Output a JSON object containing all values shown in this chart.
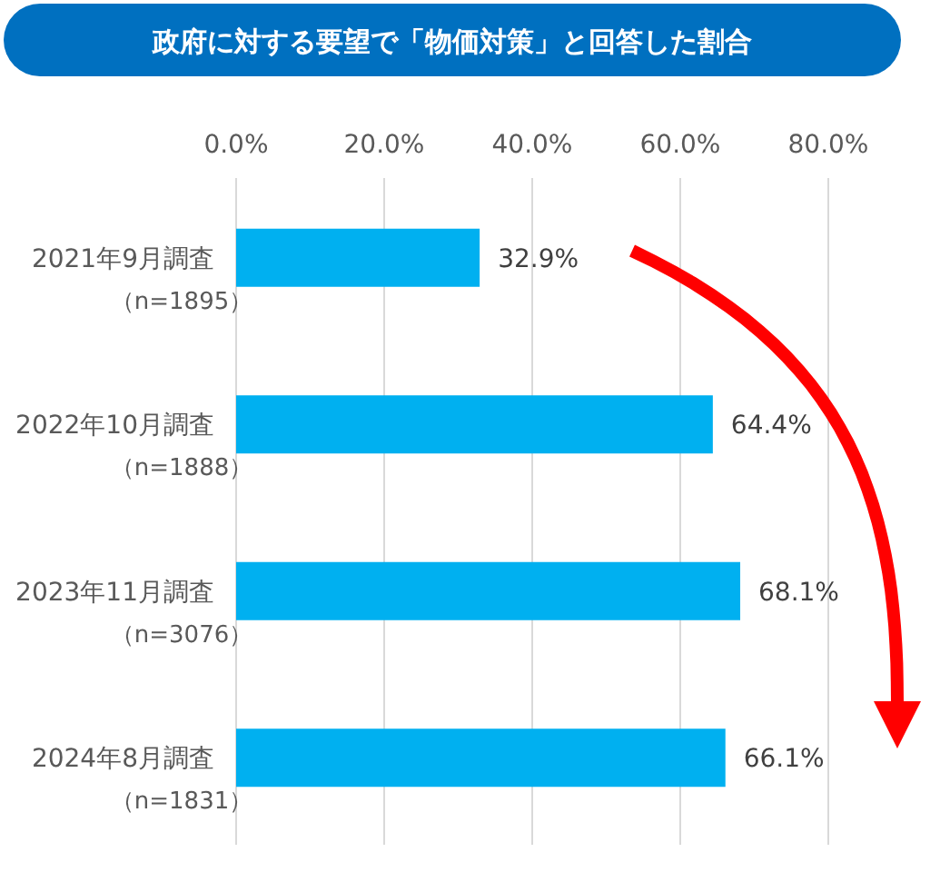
{
  "chart_data": {
    "type": "bar",
    "orientation": "horizontal",
    "title": "政府に対する要望で「物価対策」と回答した割合",
    "categories": [
      "2021年9月調査（n=1895）",
      "2022年10月調査（n=1888）",
      "2023年11月調査（n=3076）",
      "2024年8月調査（n=1831）"
    ],
    "series": [
      {
        "color": "#00b0f0",
        "values": [
          32.9,
          64.4,
          68.1,
          66.1
        ],
        "value_labels": [
          "32.9%",
          "64.4%",
          "68.1%",
          "66.1%"
        ]
      }
    ],
    "xlim": [
      0,
      80
    ],
    "xticks": [
      {
        "value": 0,
        "label": "0.0%"
      },
      {
        "value": 20,
        "label": "20.0%"
      },
      {
        "value": 40,
        "label": "40.0%"
      },
      {
        "value": 60,
        "label": "60.0%"
      },
      {
        "value": 80,
        "label": "80.0%"
      }
    ],
    "grid": "x"
  }
}
